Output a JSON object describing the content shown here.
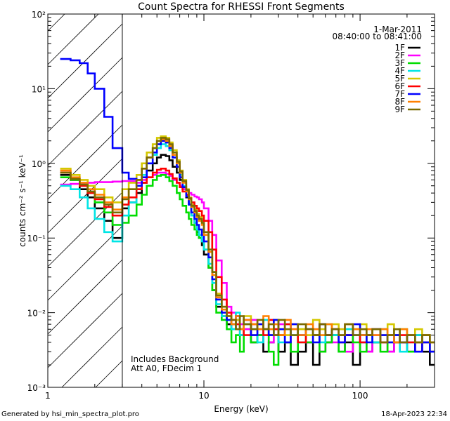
{
  "chart_data": {
    "type": "line",
    "title": "Count Spectra for RHESSI Front Segments",
    "xlabel": "Energy (keV)",
    "ylabel": "counts cm⁻² s⁻¹ keV⁻¹",
    "xscale": "log",
    "yscale": "log",
    "xlim": [
      1,
      300
    ],
    "ylim": [
      0.001,
      100
    ],
    "x_tick_labels": [
      "1",
      "10",
      "100"
    ],
    "y_tick_labels": [
      "10⁻³",
      "10⁻²",
      "10⁻¹",
      "10⁰",
      "10¹",
      "10²"
    ],
    "hatched_region": [
      1,
      3
    ],
    "legend_header": [
      "1-Mar-2011",
      "08:40:00 to 08:41:00"
    ],
    "annotation": [
      "Includes Background",
      "Att A0, FDecim 1"
    ],
    "energy_edges_keV": [
      1.2,
      1.4,
      1.6,
      1.8,
      2.0,
      2.3,
      2.6,
      3.0,
      3.3,
      3.7,
      4.0,
      4.3,
      4.7,
      5.0,
      5.3,
      5.7,
      6.0,
      6.3,
      6.7,
      7.0,
      7.3,
      7.7,
      8.0,
      8.3,
      8.7,
      9.0,
      9.3,
      9.7,
      10,
      10.7,
      11.3,
      12,
      13,
      14,
      15,
      16,
      17,
      18,
      20,
      22,
      24,
      26,
      28,
      30,
      33,
      36,
      40,
      45,
      50,
      55,
      60,
      66,
      73,
      80,
      90,
      100,
      110,
      120,
      135,
      150,
      165,
      180,
      200,
      225,
      250,
      280,
      300
    ],
    "series": [
      {
        "name": "1F",
        "color": "#000000",
        "values": [
          0.7,
          0.6,
          0.45,
          0.35,
          0.25,
          0.17,
          0.1,
          0.25,
          0.3,
          0.4,
          0.55,
          0.8,
          1.0,
          1.2,
          1.3,
          1.25,
          1.1,
          0.9,
          0.75,
          0.6,
          0.45,
          0.35,
          0.28,
          0.2,
          0.16,
          0.12,
          0.1,
          0.08,
          0.06,
          0.04,
          0.02,
          0.012,
          0.009,
          0.007,
          0.006,
          0.008,
          0.005,
          0.006,
          0.004,
          0.005,
          0.003,
          0.004,
          0.005,
          0.003,
          0.004,
          0.002,
          0.003,
          0.004,
          0.002,
          0.003,
          0.004,
          0.005,
          0.003,
          0.004,
          0.002,
          0.005,
          0.003,
          0.004,
          0.006,
          0.003,
          0.005,
          0.004,
          0.003,
          0.005,
          0.003,
          0.002
        ]
      },
      {
        "name": "2F",
        "color": "#ff00ff",
        "values": [
          0.52,
          0.53,
          0.54,
          0.55,
          0.56,
          0.56,
          0.57,
          0.58,
          0.58,
          0.55,
          0.6,
          0.65,
          0.7,
          0.75,
          0.75,
          0.72,
          0.68,
          0.6,
          0.55,
          0.5,
          0.45,
          0.42,
          0.4,
          0.38,
          0.36,
          0.35,
          0.33,
          0.3,
          0.25,
          0.17,
          0.11,
          0.05,
          0.025,
          0.012,
          0.01,
          0.009,
          0.007,
          0.006,
          0.008,
          0.005,
          0.006,
          0.004,
          0.005,
          0.007,
          0.004,
          0.006,
          0.005,
          0.004,
          0.006,
          0.003,
          0.005,
          0.004,
          0.006,
          0.003,
          0.005,
          0.004,
          0.003,
          0.005,
          0.004,
          0.003,
          0.005,
          0.004,
          0.003,
          0.004,
          0.005,
          0.003
        ]
      },
      {
        "name": "3F",
        "color": "#00dd00",
        "values": [
          0.65,
          0.6,
          0.5,
          0.4,
          0.3,
          0.22,
          0.15,
          0.16,
          0.2,
          0.28,
          0.38,
          0.5,
          0.6,
          0.68,
          0.7,
          0.65,
          0.58,
          0.5,
          0.4,
          0.33,
          0.27,
          0.22,
          0.18,
          0.15,
          0.13,
          0.11,
          0.1,
          0.09,
          0.07,
          0.04,
          0.02,
          0.01,
          0.008,
          0.006,
          0.004,
          0.005,
          0.003,
          0.007,
          0.004,
          0.005,
          0.006,
          0.003,
          0.002,
          0.005,
          0.004,
          0.003,
          0.006,
          0.004,
          0.005,
          0.003,
          0.004,
          0.005,
          0.003,
          0.006,
          0.004,
          0.003,
          0.005,
          0.004,
          0.003,
          0.005,
          0.004,
          0.006,
          0.003,
          0.004,
          0.005,
          0.003
        ]
      },
      {
        "name": "4F",
        "color": "#00e5e5",
        "values": [
          0.5,
          0.45,
          0.35,
          0.25,
          0.18,
          0.12,
          0.09,
          0.2,
          0.3,
          0.45,
          0.7,
          1.0,
          1.3,
          1.6,
          1.8,
          1.7,
          1.5,
          1.2,
          0.9,
          0.7,
          0.5,
          0.38,
          0.28,
          0.2,
          0.16,
          0.13,
          0.11,
          0.09,
          0.07,
          0.045,
          0.025,
          0.013,
          0.009,
          0.008,
          0.006,
          0.01,
          0.005,
          0.007,
          0.006,
          0.004,
          0.008,
          0.005,
          0.006,
          0.004,
          0.007,
          0.005,
          0.004,
          0.006,
          0.005,
          0.004,
          0.007,
          0.005,
          0.004,
          0.006,
          0.005,
          0.004,
          0.005,
          0.004,
          0.006,
          0.004,
          0.005,
          0.003,
          0.004,
          0.005,
          0.004,
          0.003
        ]
      },
      {
        "name": "5F",
        "color": "#d4c800",
        "values": [
          0.85,
          0.7,
          0.6,
          0.5,
          0.45,
          0.35,
          0.3,
          0.45,
          0.55,
          0.7,
          1.0,
          1.4,
          1.8,
          2.2,
          2.3,
          2.2,
          1.9,
          1.5,
          1.1,
          0.8,
          0.6,
          0.45,
          0.35,
          0.28,
          0.24,
          0.21,
          0.19,
          0.17,
          0.12,
          0.07,
          0.035,
          0.018,
          0.012,
          0.009,
          0.007,
          0.008,
          0.006,
          0.009,
          0.005,
          0.007,
          0.006,
          0.005,
          0.008,
          0.006,
          0.005,
          0.007,
          0.006,
          0.005,
          0.008,
          0.006,
          0.005,
          0.007,
          0.006,
          0.005,
          0.006,
          0.007,
          0.005,
          0.006,
          0.005,
          0.007,
          0.005,
          0.006,
          0.005,
          0.006,
          0.005,
          0.004
        ]
      },
      {
        "name": "6F",
        "color": "#ff0000",
        "values": [
          0.75,
          0.62,
          0.5,
          0.4,
          0.33,
          0.26,
          0.2,
          0.28,
          0.35,
          0.45,
          0.55,
          0.65,
          0.75,
          0.82,
          0.85,
          0.8,
          0.72,
          0.63,
          0.55,
          0.48,
          0.42,
          0.38,
          0.34,
          0.3,
          0.27,
          0.25,
          0.23,
          0.2,
          0.17,
          0.12,
          0.07,
          0.03,
          0.015,
          0.01,
          0.008,
          0.007,
          0.006,
          0.005,
          0.007,
          0.006,
          0.005,
          0.008,
          0.006,
          0.005,
          0.007,
          0.006,
          0.004,
          0.006,
          0.005,
          0.007,
          0.005,
          0.006,
          0.004,
          0.005,
          0.006,
          0.004,
          0.005,
          0.006,
          0.004,
          0.005,
          0.004,
          0.005,
          0.004,
          0.003,
          0.004,
          0.003
        ]
      },
      {
        "name": "7F",
        "color": "#0000ff",
        "values": [
          25,
          24,
          22,
          16,
          10,
          4.2,
          1.6,
          0.75,
          0.62,
          0.5,
          0.65,
          1.0,
          1.4,
          1.8,
          2.0,
          1.9,
          1.6,
          1.2,
          0.9,
          0.65,
          0.48,
          0.36,
          0.28,
          0.22,
          0.18,
          0.15,
          0.13,
          0.11,
          0.09,
          0.055,
          0.028,
          0.015,
          0.01,
          0.008,
          0.007,
          0.009,
          0.006,
          0.008,
          0.005,
          0.007,
          0.006,
          0.005,
          0.008,
          0.006,
          0.004,
          0.007,
          0.005,
          0.006,
          0.004,
          0.007,
          0.005,
          0.006,
          0.004,
          0.005,
          0.007,
          0.005,
          0.004,
          0.006,
          0.005,
          0.004,
          0.005,
          0.004,
          0.005,
          0.003,
          0.004,
          0.003
        ]
      },
      {
        "name": "8F",
        "color": "#ff8000",
        "values": [
          0.8,
          0.65,
          0.55,
          0.45,
          0.38,
          0.3,
          0.24,
          0.35,
          0.45,
          0.6,
          0.85,
          1.2,
          1.6,
          2.0,
          2.1,
          2.0,
          1.7,
          1.3,
          1.0,
          0.75,
          0.55,
          0.42,
          0.33,
          0.26,
          0.22,
          0.19,
          0.17,
          0.15,
          0.11,
          0.065,
          0.032,
          0.016,
          0.011,
          0.009,
          0.007,
          0.009,
          0.006,
          0.008,
          0.007,
          0.006,
          0.009,
          0.006,
          0.007,
          0.005,
          0.008,
          0.006,
          0.005,
          0.007,
          0.006,
          0.005,
          0.007,
          0.006,
          0.005,
          0.007,
          0.006,
          0.005,
          0.006,
          0.005,
          0.006,
          0.005,
          0.004,
          0.006,
          0.005,
          0.004,
          0.005,
          0.004
        ]
      },
      {
        "name": "9F",
        "color": "#7a6a00",
        "values": [
          0.75,
          0.62,
          0.52,
          0.42,
          0.35,
          0.28,
          0.22,
          0.33,
          0.45,
          0.6,
          0.85,
          1.2,
          1.6,
          2.0,
          2.2,
          2.1,
          1.8,
          1.4,
          1.05,
          0.78,
          0.58,
          0.44,
          0.34,
          0.27,
          0.23,
          0.2,
          0.18,
          0.16,
          0.12,
          0.07,
          0.035,
          0.017,
          0.012,
          0.009,
          0.008,
          0.006,
          0.009,
          0.007,
          0.006,
          0.008,
          0.006,
          0.007,
          0.005,
          0.008,
          0.006,
          0.005,
          0.007,
          0.006,
          0.005,
          0.007,
          0.005,
          0.006,
          0.005,
          0.007,
          0.005,
          0.006,
          0.005,
          0.006,
          0.004,
          0.005,
          0.006,
          0.004,
          0.005,
          0.004,
          0.005,
          0.004
        ]
      }
    ]
  },
  "footer": {
    "generated_by": "Generated by hsi_min_spectra_plot.pro",
    "date": "18-Apr-2023 22:34"
  }
}
